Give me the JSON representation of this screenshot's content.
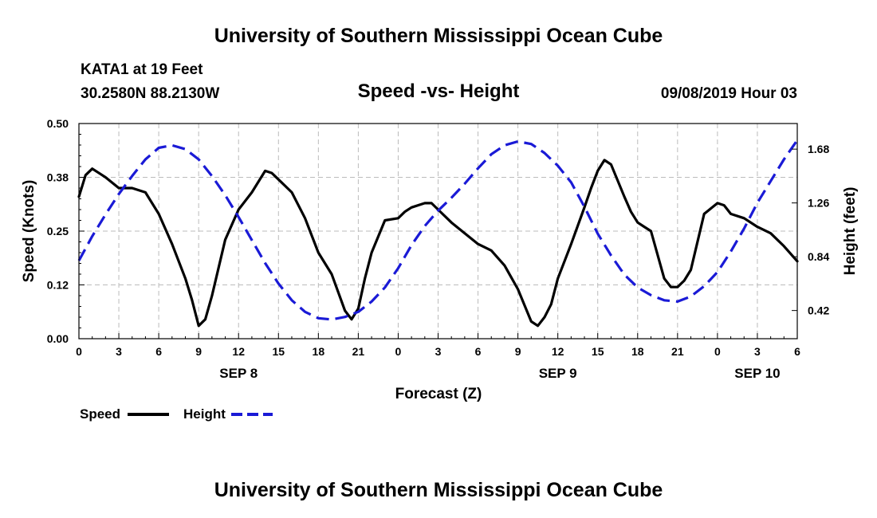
{
  "header": {
    "title": "University of Southern Mississippi Ocean Cube",
    "station": "KATA1 at 19 Feet",
    "coords": "30.2580N 88.2130W",
    "chart_title": "Speed -vs- Height",
    "date": "09/08/2019 Hour 03"
  },
  "footer": {
    "title": "University of Southern Mississippi Ocean Cube"
  },
  "legend": {
    "speed_label": "Speed",
    "height_label": "Height"
  },
  "colors": {
    "speed": "#000000",
    "height": "#1a1ad6",
    "grid": "#bbbbbb"
  },
  "chart_data": {
    "type": "line",
    "title": "Speed -vs- Height",
    "xlabel": "Forecast (Z)",
    "ylabel": "Speed (Knots)",
    "y2label": "Height (feet)",
    "x_unit": "forecast hours from 00Z SEP 8",
    "xlim": [
      0,
      54
    ],
    "ylim": [
      0,
      0.5
    ],
    "y2lim": [
      0.2,
      1.88
    ],
    "x_ticks": [
      0,
      3,
      6,
      9,
      12,
      15,
      18,
      21,
      24,
      27,
      30,
      33,
      36,
      39,
      42,
      45,
      48,
      51,
      54
    ],
    "x_tick_labels": [
      "0",
      "3",
      "6",
      "9",
      "12",
      "15",
      "18",
      "21",
      "0",
      "3",
      "6",
      "9",
      "12",
      "15",
      "18",
      "21",
      "0",
      "3",
      "6"
    ],
    "y_ticks": [
      0,
      0.125,
      0.25,
      0.375,
      0.5
    ],
    "y_tick_labels": [
      "0.00",
      "0.12",
      "0.25",
      "0.38",
      "0.50"
    ],
    "y2_ticks": [
      0.42,
      0.84,
      1.26,
      1.68
    ],
    "y2_tick_labels": [
      "0.42",
      "0.84",
      "1.26",
      "1.68"
    ],
    "date_labels": [
      {
        "x": 12,
        "label": "SEP 8"
      },
      {
        "x": 36,
        "label": "SEP 9"
      },
      {
        "x": 51,
        "label": "SEP 10"
      }
    ],
    "grid": true,
    "series": [
      {
        "name": "Speed",
        "axis": "left",
        "style": "solid",
        "x": [
          0,
          0.5,
          1,
          2,
          3,
          4,
          5,
          6,
          7,
          8,
          8.5,
          9,
          9.5,
          10,
          11,
          12,
          13,
          14,
          14.5,
          15,
          16,
          17,
          18,
          19,
          20,
          20.5,
          21,
          21.5,
          22,
          23,
          24,
          24.5,
          25,
          26,
          26.5,
          27,
          28,
          29,
          30,
          31,
          32,
          33,
          34,
          34.5,
          35,
          35.5,
          36,
          37,
          38,
          38.5,
          39,
          39.5,
          40,
          41,
          41.5,
          42,
          42.5,
          43,
          44,
          44.5,
          45,
          45.5,
          46,
          47,
          48,
          48.5,
          49,
          50,
          51,
          52,
          53,
          54
        ],
        "values": [
          0.33,
          0.38,
          0.395,
          0.375,
          0.35,
          0.35,
          0.34,
          0.29,
          0.22,
          0.14,
          0.09,
          0.03,
          0.045,
          0.1,
          0.23,
          0.3,
          0.34,
          0.39,
          0.385,
          0.37,
          0.34,
          0.28,
          0.2,
          0.15,
          0.065,
          0.045,
          0.07,
          0.14,
          0.2,
          0.275,
          0.28,
          0.295,
          0.305,
          0.315,
          0.315,
          0.3,
          0.27,
          0.245,
          0.22,
          0.205,
          0.17,
          0.115,
          0.04,
          0.03,
          0.05,
          0.08,
          0.14,
          0.22,
          0.305,
          0.35,
          0.39,
          0.415,
          0.405,
          0.33,
          0.295,
          0.27,
          0.26,
          0.25,
          0.14,
          0.12,
          0.12,
          0.135,
          0.16,
          0.29,
          0.315,
          0.31,
          0.29,
          0.28,
          0.26,
          0.245,
          0.215,
          0.18
        ]
      },
      {
        "name": "Height",
        "axis": "right",
        "style": "dashed",
        "x": [
          0,
          1,
          2,
          3,
          4,
          5,
          6,
          7,
          8,
          9,
          10,
          11,
          12,
          13,
          14,
          15,
          16,
          17,
          18,
          19,
          20,
          21,
          22,
          23,
          24,
          25,
          26,
          27,
          28,
          29,
          30,
          31,
          32,
          33,
          34,
          35,
          36,
          37,
          38,
          39,
          40,
          41,
          42,
          43,
          44,
          45,
          46,
          47,
          48,
          49,
          50,
          51,
          52,
          53,
          54
        ],
        "values": [
          0.81,
          1.0,
          1.17,
          1.33,
          1.47,
          1.6,
          1.69,
          1.71,
          1.68,
          1.6,
          1.47,
          1.32,
          1.15,
          0.97,
          0.79,
          0.63,
          0.5,
          0.41,
          0.36,
          0.35,
          0.37,
          0.41,
          0.49,
          0.6,
          0.75,
          0.93,
          1.08,
          1.2,
          1.3,
          1.41,
          1.53,
          1.64,
          1.71,
          1.74,
          1.72,
          1.65,
          1.55,
          1.42,
          1.23,
          1.02,
          0.85,
          0.7,
          0.6,
          0.54,
          0.5,
          0.49,
          0.53,
          0.61,
          0.72,
          0.88,
          1.06,
          1.26,
          1.43,
          1.6,
          1.75
        ]
      }
    ]
  }
}
